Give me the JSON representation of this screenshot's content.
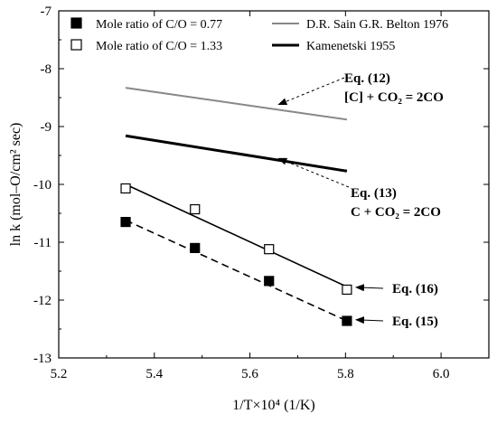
{
  "chart_data": {
    "type": "scatter",
    "xlabel": "1/T×10⁴ (1/K)",
    "ylabel": "ln k (mol–O/cm² sec)",
    "xlim": [
      5.2,
      6.1
    ],
    "ylim": [
      -13,
      -7
    ],
    "xticks": [
      "5.2",
      "5.4",
      "5.6",
      "5.8",
      "6.0"
    ],
    "yticks": [
      "-7",
      "-8",
      "-9",
      "-10",
      "-11",
      "-12",
      "-13"
    ],
    "grid": false,
    "legend_position": "top",
    "series": [
      {
        "name": "Mole ratio of C/O = 0.77",
        "marker": "filled-square",
        "points": [
          [
            5.34,
            -10.65
          ],
          [
            5.485,
            -11.1
          ],
          [
            5.64,
            -11.67
          ],
          [
            5.803,
            -12.36
          ]
        ],
        "fit": {
          "x": [
            5.34,
            5.803
          ],
          "y": [
            -10.62,
            -12.36
          ],
          "style": "dashed"
        },
        "color": "#000000"
      },
      {
        "name": "Mole ratio of C/O = 1.33",
        "marker": "open-square",
        "points": [
          [
            5.34,
            -10.07
          ],
          [
            5.485,
            -10.43
          ],
          [
            5.64,
            -11.12
          ],
          [
            5.803,
            -11.82
          ]
        ],
        "fit": {
          "x": [
            5.34,
            5.803
          ],
          "y": [
            -10.0,
            -11.77
          ],
          "style": "solid"
        },
        "color": "#000000"
      },
      {
        "name": "D.R. Sain G.R. Belton 1976",
        "marker": "none",
        "line": {
          "x": [
            5.34,
            5.803
          ],
          "y": [
            -8.33,
            -8.88
          ]
        },
        "color": "#888888"
      },
      {
        "name": "Kamenetski 1955",
        "marker": "none",
        "line": {
          "x": [
            5.34,
            5.803
          ],
          "y": [
            -9.16,
            -9.77
          ]
        },
        "color": "#000000"
      }
    ],
    "annotations": [
      {
        "lines": [
          "Eq. (12)",
          "[C] + CO₂ = 2CO"
        ],
        "target": [
          5.66,
          -8.62
        ]
      },
      {
        "lines": [
          "Eq. (13)",
          "C + CO₂ = 2CO"
        ],
        "target": [
          5.66,
          -9.55
        ]
      },
      {
        "lines": [
          "Eq. (16)"
        ],
        "target": [
          5.822,
          -11.78
        ]
      },
      {
        "lines": [
          "Eq. (15)"
        ],
        "target": [
          5.822,
          -12.34
        ]
      }
    ]
  }
}
